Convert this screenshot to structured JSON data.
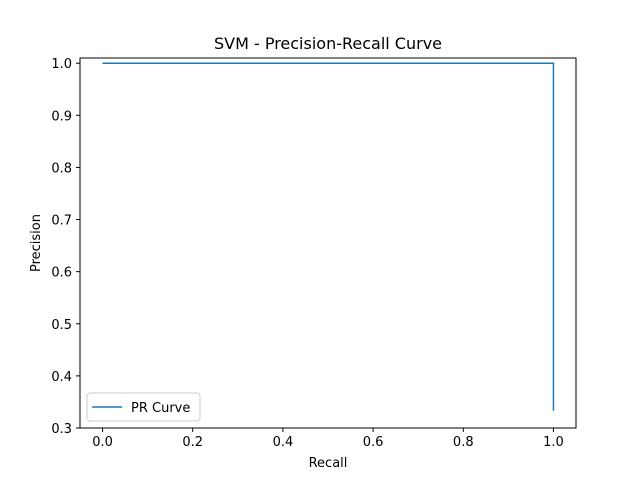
{
  "chart_data": {
    "type": "line",
    "title": "SVM - Precision-Recall Curve",
    "xlabel": "Recall",
    "ylabel": "Precision",
    "xlim": [
      -0.05,
      1.05
    ],
    "ylim": [
      0.3,
      1.01
    ],
    "xticks": [
      0.0,
      0.2,
      0.4,
      0.6,
      0.8,
      1.0
    ],
    "xtick_labels": [
      "0.0",
      "0.2",
      "0.4",
      "0.6",
      "0.8",
      "1.0"
    ],
    "yticks": [
      0.3,
      0.4,
      0.5,
      0.6,
      0.7,
      0.8,
      0.9,
      1.0
    ],
    "ytick_labels": [
      "0.3",
      "0.4",
      "0.5",
      "0.6",
      "0.7",
      "0.8",
      "0.9",
      "1.0"
    ],
    "grid": false,
    "legend_position": "lower-left",
    "series": [
      {
        "name": "PR Curve",
        "color": "#1f77b4",
        "x": [
          0.0,
          1.0,
          1.0
        ],
        "y": [
          1.0,
          1.0,
          0.333
        ]
      }
    ]
  }
}
